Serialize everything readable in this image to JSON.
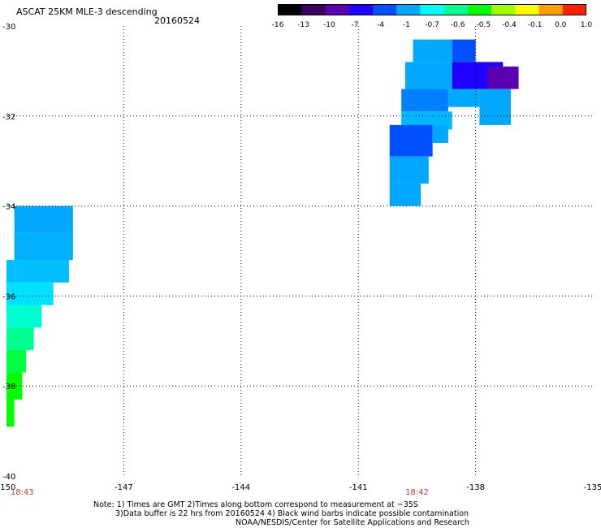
{
  "header": {
    "title": "ASCAT 25KM MLE-3 descending",
    "date": "20160524"
  },
  "colorbar": {
    "labels": [
      "-16",
      "-13",
      "-10",
      "-7",
      "-4",
      "-1",
      "-0.7",
      "-0.6",
      "-0.5",
      "-0.4",
      "-0.1",
      "0.0",
      "1.0"
    ],
    "colors": [
      "#000000",
      "#3a0060",
      "#5a00b0",
      "#2000ff",
      "#0050ff",
      "#00a8ff",
      "#00ffff",
      "#00ff90",
      "#00ff00",
      "#a0ff00",
      "#ffff00",
      "#ffa000",
      "#ff2000"
    ]
  },
  "axes": {
    "lat_labels": [
      "-30",
      "-32",
      "-34",
      "-36",
      "-38",
      "-40"
    ],
    "lon_labels": [
      "-150",
      "-147",
      "-144",
      "-141",
      "-138",
      "-135"
    ],
    "lat_range": [
      -40,
      -30
    ],
    "lon_range": [
      -150,
      -135
    ]
  },
  "time_labels": [
    {
      "text": "18:43",
      "lon": -149.6
    },
    {
      "text": "18:42",
      "lon": -139.5
    }
  ],
  "notes": {
    "line1": "Note: 1) Times are GMT 2)Times along bottom correspond to measurement at ~35S",
    "line2": "3)Data buffer is 22 hrs from 20160524 4) Black wind barbs indicate possible contamination",
    "line3": "NOAA/NESDIS/Center for Satellite Applications and Research"
  },
  "swaths": [
    {
      "name": "east-swath",
      "cells": [
        {
          "lon": -139.6,
          "lat": -30.3,
          "w": 1.0,
          "h": 0.5,
          "color": "#00a8ff"
        },
        {
          "lon": -138.6,
          "lat": -30.3,
          "w": 0.6,
          "h": 0.5,
          "color": "#0050ff"
        },
        {
          "lon": -139.8,
          "lat": -30.8,
          "w": 1.2,
          "h": 0.6,
          "color": "#00a8ff"
        },
        {
          "lon": -138.6,
          "lat": -30.8,
          "w": 1.3,
          "h": 0.6,
          "color": "#2000ff"
        },
        {
          "lon": -137.7,
          "lat": -30.9,
          "w": 0.8,
          "h": 0.5,
          "color": "#5a00b0"
        },
        {
          "lon": -139.9,
          "lat": -31.4,
          "w": 1.2,
          "h": 0.5,
          "color": "#0080ff"
        },
        {
          "lon": -138.7,
          "lat": -31.4,
          "w": 0.8,
          "h": 0.4,
          "color": "#00a8ff"
        },
        {
          "lon": -137.9,
          "lat": -31.4,
          "w": 0.8,
          "h": 0.8,
          "color": "#00a8ff"
        },
        {
          "lon": -139.9,
          "lat": -31.9,
          "w": 1.3,
          "h": 0.4,
          "color": "#00b8ff"
        },
        {
          "lon": -140.2,
          "lat": -32.2,
          "w": 1.1,
          "h": 0.7,
          "color": "#0050ff"
        },
        {
          "lon": -139.1,
          "lat": -32.2,
          "w": 0.4,
          "h": 0.4,
          "color": "#00a8ff"
        },
        {
          "lon": -140.2,
          "lat": -32.9,
          "w": 1.0,
          "h": 0.6,
          "color": "#00a8ff"
        },
        {
          "lon": -140.2,
          "lat": -33.5,
          "w": 0.8,
          "h": 0.5,
          "color": "#00a8ff"
        }
      ]
    },
    {
      "name": "west-swath",
      "cells": [
        {
          "lon": -149.8,
          "lat": -34.0,
          "w": 1.5,
          "h": 0.6,
          "color": "#00a8ff"
        },
        {
          "lon": -149.8,
          "lat": -34.6,
          "w": 1.5,
          "h": 0.6,
          "color": "#00b0ff"
        },
        {
          "lon": -150.0,
          "lat": -35.2,
          "w": 1.6,
          "h": 0.5,
          "color": "#00c0ff"
        },
        {
          "lon": -150.0,
          "lat": -35.7,
          "w": 1.2,
          "h": 0.5,
          "color": "#00e0ff"
        },
        {
          "lon": -150.0,
          "lat": -36.2,
          "w": 0.9,
          "h": 0.5,
          "color": "#00ffd0"
        },
        {
          "lon": -150.0,
          "lat": -36.7,
          "w": 0.7,
          "h": 0.5,
          "color": "#00ff90"
        },
        {
          "lon": -150.0,
          "lat": -37.2,
          "w": 0.5,
          "h": 0.5,
          "color": "#00ff40"
        },
        {
          "lon": -150.0,
          "lat": -37.7,
          "w": 0.4,
          "h": 0.6,
          "color": "#00ff00"
        },
        {
          "lon": -150.0,
          "lat": -38.3,
          "w": 0.2,
          "h": 0.6,
          "color": "#00ff00"
        }
      ]
    }
  ]
}
